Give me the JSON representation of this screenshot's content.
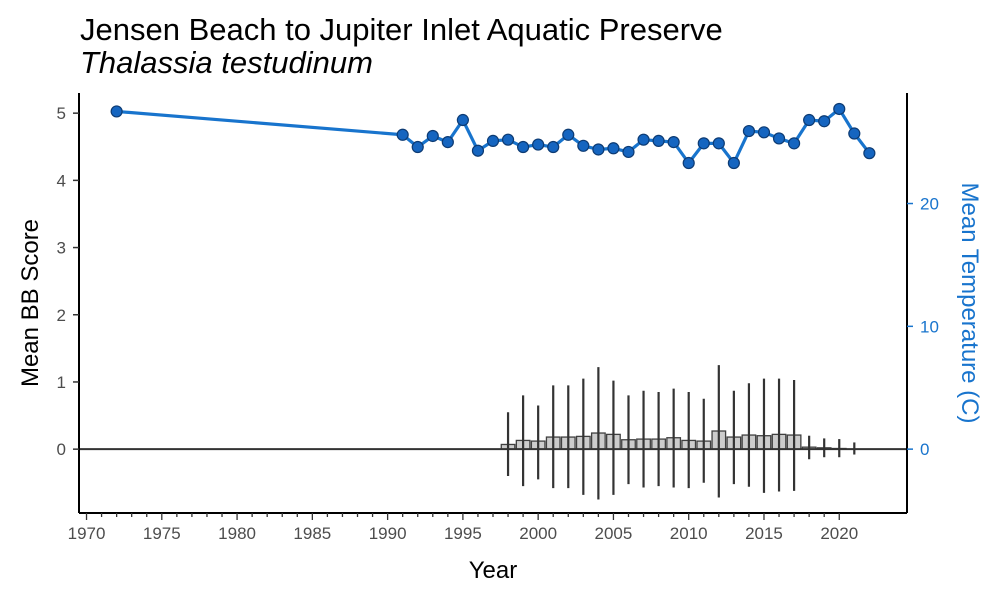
{
  "chart_data": {
    "type": "bar",
    "title": "Jensen Beach to Jupiter Inlet Aquatic Preserve",
    "subtitle": "Thalassia testudinum",
    "xlabel": "Year",
    "ylabel": "Mean BB Score",
    "y2label": "Mean Temperature (C)",
    "xlim": [
      1969.5,
      2024.5
    ],
    "ylim": [
      -0.95,
      5.3
    ],
    "y2lim": [
      -5.2,
      29
    ],
    "x_ticks": [
      1970,
      1975,
      1980,
      1985,
      1990,
      1995,
      2000,
      2005,
      2010,
      2015,
      2020
    ],
    "y_ticks": [
      0,
      1,
      2,
      3,
      4,
      5
    ],
    "y2_ticks": [
      0,
      10,
      20
    ],
    "grid": false,
    "colors": {
      "temperature": "#1874CD",
      "temperature_point": "#1565C0",
      "bar_fill": "#cccccc",
      "bar_edge": "#404040",
      "errorbar": "#333333",
      "zero_line": "#333333"
    },
    "series": [
      {
        "name": "Mean BB Score",
        "kind": "bar_with_errorbars",
        "x": [
          1998,
          1999,
          2000,
          2001,
          2002,
          2003,
          2004,
          2005,
          2006,
          2007,
          2008,
          2009,
          2010,
          2011,
          2012,
          2013,
          2014,
          2015,
          2016,
          2017,
          2018,
          2019,
          2020,
          2021
        ],
        "values": [
          0.07,
          0.13,
          0.12,
          0.18,
          0.18,
          0.19,
          0.24,
          0.22,
          0.14,
          0.15,
          0.15,
          0.17,
          0.13,
          0.12,
          0.27,
          0.18,
          0.21,
          0.2,
          0.22,
          0.21,
          0.03,
          0.02,
          0.01,
          0.0
        ],
        "upper": [
          0.55,
          0.8,
          0.65,
          0.95,
          0.95,
          1.05,
          1.22,
          1.02,
          0.8,
          0.87,
          0.85,
          0.9,
          0.85,
          0.75,
          1.25,
          0.87,
          0.98,
          1.05,
          1.05,
          1.03,
          0.2,
          0.16,
          0.15,
          0.1
        ],
        "lower": [
          -0.4,
          -0.55,
          -0.45,
          -0.58,
          -0.58,
          -0.68,
          -0.75,
          -0.68,
          -0.52,
          -0.57,
          -0.55,
          -0.57,
          -0.58,
          -0.5,
          -0.72,
          -0.52,
          -0.56,
          -0.65,
          -0.63,
          -0.62,
          -0.15,
          -0.12,
          -0.12,
          -0.08
        ]
      },
      {
        "name": "Mean Temperature (C)",
        "kind": "line",
        "axis": "right",
        "x": [
          1972,
          1991,
          1992,
          1993,
          1994,
          1995,
          1996,
          1997,
          1998,
          1999,
          2000,
          2001,
          2002,
          2003,
          2004,
          2005,
          2006,
          2007,
          2008,
          2009,
          2010,
          2011,
          2012,
          2013,
          2014,
          2015,
          2016,
          2017,
          2018,
          2019,
          2020,
          2021,
          2022
        ],
        "values": [
          27.5,
          25.6,
          24.6,
          25.5,
          25.0,
          26.8,
          24.3,
          25.1,
          25.2,
          24.6,
          24.8,
          24.6,
          25.6,
          24.7,
          24.4,
          24.5,
          24.2,
          25.2,
          25.1,
          25.0,
          23.3,
          24.9,
          24.9,
          23.3,
          25.9,
          25.8,
          25.3,
          24.9,
          26.8,
          26.7,
          27.7,
          25.7,
          24.1
        ]
      }
    ]
  }
}
